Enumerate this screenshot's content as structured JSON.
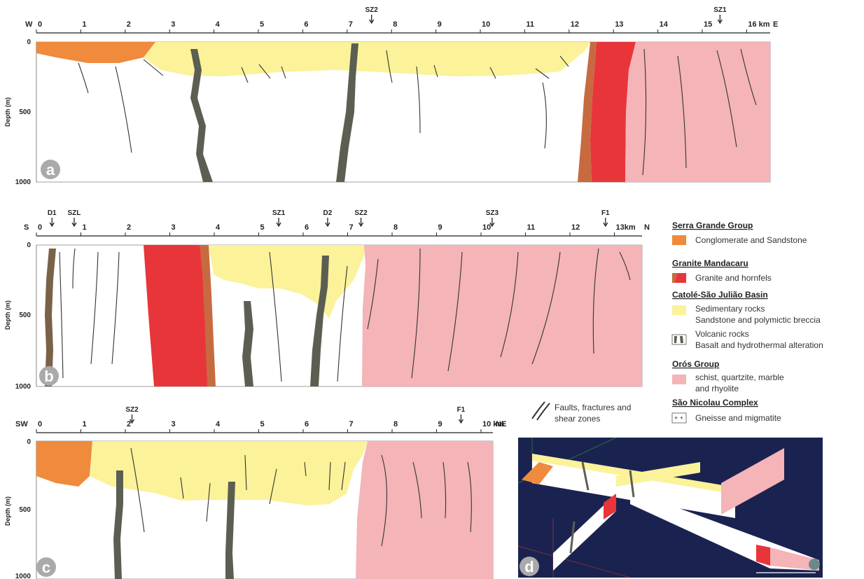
{
  "sections": [
    {
      "letter": "a",
      "left_end": "W",
      "right_end": "E",
      "ticks": [
        "0",
        "1",
        "2",
        "3",
        "4",
        "5",
        "6",
        "7",
        "8",
        "9",
        "10",
        "11",
        "12",
        "13",
        "14",
        "15",
        "16 km"
      ],
      "markers": [
        {
          "label": "SZ2",
          "km": 7.55
        },
        {
          "label": "SZ1",
          "km": 15.4
        }
      ],
      "depth_label": "Depth (m)",
      "depth_ticks": [
        "0",
        "500",
        "1000"
      ]
    },
    {
      "letter": "b",
      "left_end": "S",
      "right_end": "N",
      "ticks": [
        "0",
        "1",
        "2",
        "3",
        "4",
        "5",
        "6",
        "7",
        "8",
        "9",
        "10",
        "11",
        "12",
        "13km"
      ],
      "markers": [
        {
          "label": "D1",
          "km": 0.35
        },
        {
          "label": "SZL",
          "km": 0.85
        },
        {
          "label": "SZ1",
          "km": 5.45
        },
        {
          "label": "D2",
          "km": 6.55
        },
        {
          "label": "SZ2",
          "km": 7.3
        },
        {
          "label": "SZ3",
          "km": 10.25
        },
        {
          "label": "F1",
          "km": 12.8
        }
      ],
      "depth_label": "Depth (m)",
      "depth_ticks": [
        "0",
        "500",
        "1000"
      ]
    },
    {
      "letter": "c",
      "left_end": "SW",
      "right_end": "NE",
      "ticks": [
        "0",
        "1",
        "2",
        "3",
        "4",
        "5",
        "6",
        "7",
        "8",
        "9",
        "10 km"
      ],
      "markers": [
        {
          "label": "SZ2",
          "km": 2.15
        },
        {
          "label": "F1",
          "km": 9.55
        }
      ],
      "depth_label": "Depth (m)",
      "depth_ticks": [
        "0",
        "500",
        "1000"
      ]
    }
  ],
  "panel_d": {
    "letter": "d"
  },
  "legend": {
    "serra_grande": {
      "heading": "Serra Grande Group",
      "item": "Conglomerate and Sandstone"
    },
    "mandacaru": {
      "heading": "Granite Mandacaru",
      "item": "Granite and hornfels"
    },
    "catole": {
      "heading": "Catolé-São Julião Basin",
      "sed_1": "Sedimentary rocks",
      "sed_2": "Sandstone and polymictic breccia",
      "vol_1": "Volcanic rocks",
      "vol_2": "Basalt and hydrothermal alteration"
    },
    "oros": {
      "heading": "Orós Group",
      "item_1": "schist, quartzite, marble",
      "item_2": "and rhyolite"
    },
    "faults": {
      "item_1": "Faults, fractures and",
      "item_2": "shear zones"
    },
    "sao_nicolau": {
      "heading": "São Nicolau Complex",
      "item": "Gneisse and migmatite"
    }
  },
  "colors": {
    "conglomerate": "#f08a3c",
    "granite": "#e8353a",
    "hornfels": "#c86a40",
    "sedimentary": "#fbf29a",
    "volcanic": "#5c5e52",
    "oros": "#f4b4b8",
    "basement": "#ffffff",
    "faults": "#333333",
    "panel_d_bg": "#1a2350"
  }
}
